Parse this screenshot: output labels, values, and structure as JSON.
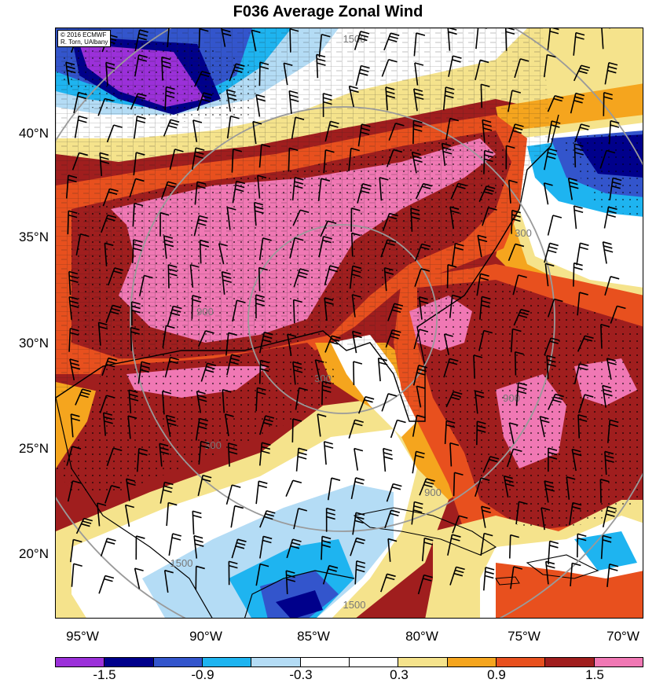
{
  "title": "F036 Average Zonal Wind",
  "credit": {
    "line1": "© 2016 ECMWF",
    "line2": "R. Torn, UAlbany"
  },
  "lat_labels": [
    "40°N",
    "35°N",
    "30°N",
    "25°N",
    "20°N"
  ],
  "lon_labels": [
    "95°W",
    "90°W",
    "85°W",
    "80°W",
    "75°W",
    "70°W"
  ],
  "range_rings": [
    "1500",
    "900",
    "300",
    "300",
    "900",
    "1500",
    "1500",
    "900",
    "300"
  ],
  "colorbar": {
    "colors": [
      "#9b30d9",
      "#00008b",
      "#3355cc",
      "#1eb4f0",
      "#b4dcf5",
      "#ffffff",
      "#ffffff",
      "#f5e38c",
      "#f5a51e",
      "#e8501e",
      "#a01e1e",
      "#f078b4"
    ],
    "labels": [
      "-1.5",
      "-0.9",
      "-0.3",
      "0.3",
      "0.9",
      "1.5"
    ]
  },
  "map_colors": {
    "purple": "#9b30d9",
    "navy": "#00008b",
    "blue": "#3355cc",
    "cyan": "#1eb4f0",
    "light_blue": "#b4dcf5",
    "white": "#ffffff",
    "light_yellow": "#f5e38c",
    "orange": "#f5a51e",
    "red_orange": "#e8501e",
    "dark_red": "#a01e1e",
    "pink": "#f078b4"
  }
}
